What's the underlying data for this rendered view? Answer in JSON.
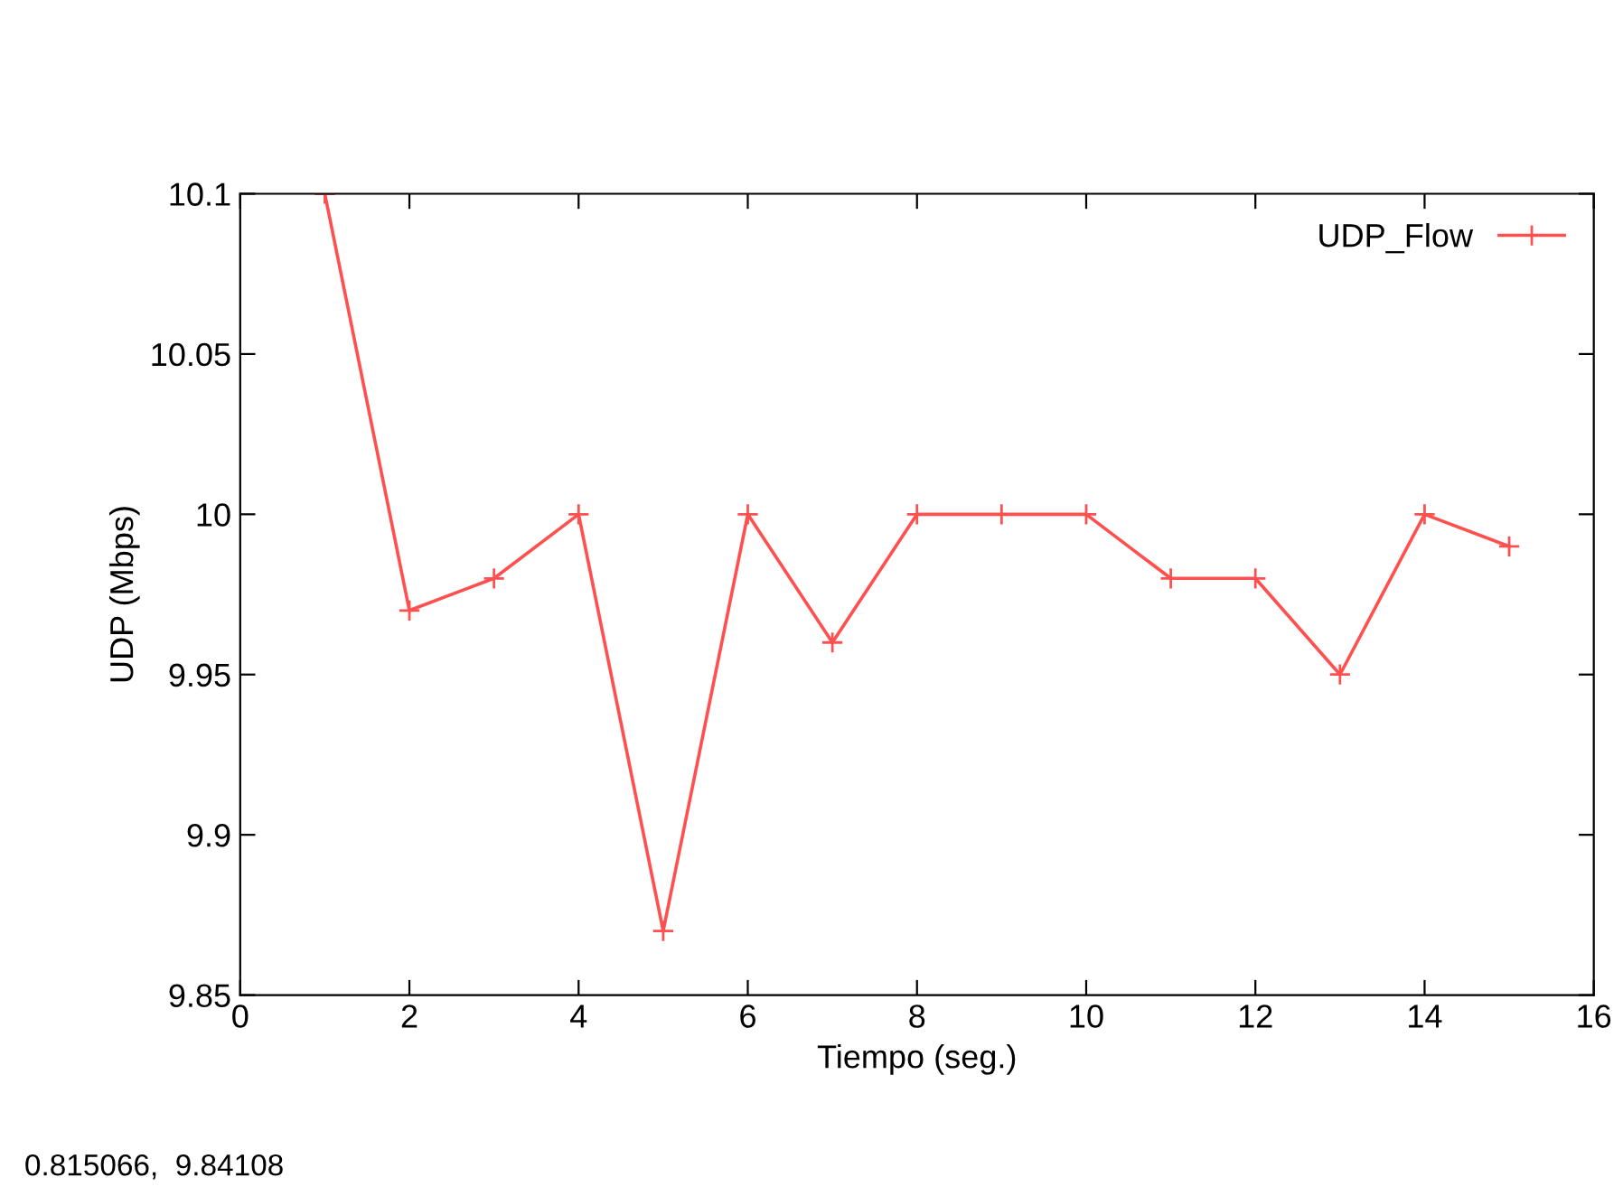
{
  "chart_data": {
    "type": "line",
    "xlabel": "Tiempo (seg.)",
    "ylabel": "UDP (Mbps)",
    "x": [
      1,
      2,
      3,
      4,
      5,
      6,
      7,
      8,
      9,
      10,
      11,
      12,
      13,
      14,
      15
    ],
    "series": [
      {
        "name": "UDP_Flow",
        "color": "#ff5050",
        "values": [
          10.1,
          9.97,
          9.98,
          10,
          9.87,
          10,
          9.96,
          10,
          10,
          10,
          9.98,
          9.98,
          9.95,
          10,
          9.99
        ]
      }
    ],
    "xlim": [
      0,
      16
    ],
    "xticks": [
      0,
      2,
      4,
      6,
      8,
      10,
      12,
      14,
      16
    ],
    "ylim": [
      9.85,
      10.1
    ],
    "yticks": [
      9.85,
      9.9,
      9.95,
      10,
      10.05,
      10.1
    ],
    "marker": "cross",
    "line_style": "solid",
    "grid": false,
    "legend": "top right",
    "annotations": [
      "0.815066,  9.84108"
    ]
  }
}
